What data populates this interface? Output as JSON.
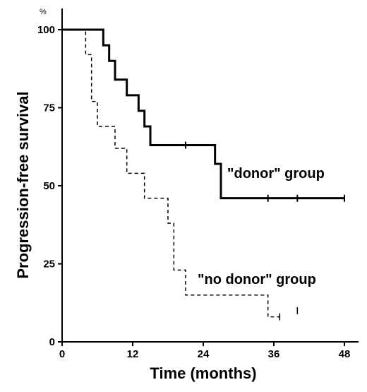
{
  "chart_data": {
    "type": "line",
    "xlabel": "Time (months)",
    "ylabel": "Progression-free survival",
    "y_unit": "%",
    "xlim": [
      0,
      48
    ],
    "ylim": [
      0,
      100
    ],
    "x_ticks": [
      "0",
      "12",
      "24",
      "36",
      "48"
    ],
    "y_ticks": [
      "0",
      "25",
      "50",
      "75",
      "100"
    ],
    "grid": false,
    "series": [
      {
        "name": "\"donor\" group",
        "line_style": "solid",
        "x": [
          0,
          6,
          7,
          8,
          9,
          11,
          13,
          14,
          15,
          24,
          26,
          27,
          48
        ],
        "y": [
          100,
          100,
          95,
          90,
          84,
          79,
          74,
          69,
          63,
          63,
          57,
          46,
          46
        ],
        "censor_x": [
          21,
          35,
          40,
          48
        ],
        "censor_y": [
          63,
          46,
          46,
          46
        ]
      },
      {
        "name": "\"no donor\" group",
        "line_style": "dashed",
        "x": [
          0,
          3,
          4,
          5,
          6,
          9,
          11,
          14,
          18,
          19,
          21,
          35,
          37
        ],
        "y": [
          100,
          100,
          92,
          77,
          69,
          62,
          54,
          46,
          38,
          23,
          15,
          8,
          8
        ],
        "censor_x": [
          37,
          40
        ],
        "censor_y": [
          8,
          10
        ]
      }
    ]
  }
}
